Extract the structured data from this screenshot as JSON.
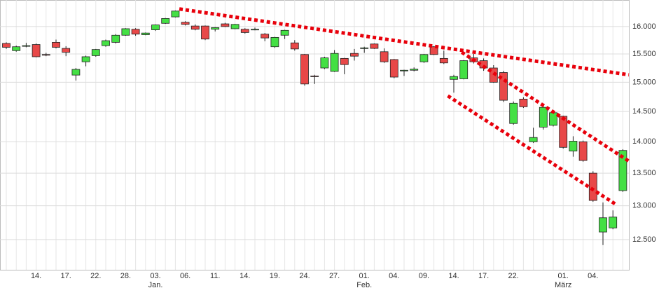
{
  "chart_data": {
    "type": "candlestick",
    "categories": [
      null,
      null,
      null,
      "14.",
      null,
      null,
      "17.",
      null,
      null,
      "22.",
      null,
      null,
      "28.",
      null,
      null,
      {
        "label": "03.",
        "month": "Jan."
      },
      null,
      null,
      "06.",
      null,
      null,
      "11.",
      null,
      null,
      "14.",
      null,
      null,
      "19.",
      null,
      null,
      "24.",
      null,
      null,
      "27.",
      null,
      null,
      {
        "label": "01.",
        "month": "Feb."
      },
      null,
      null,
      "04.",
      null,
      null,
      "09.",
      null,
      null,
      "14.",
      null,
      null,
      "17.",
      null,
      null,
      "22.",
      null,
      null,
      null,
      null,
      {
        "label": "01.",
        "month": "März"
      },
      null,
      null,
      "04.",
      null,
      null,
      null
    ],
    "open": [
      15690,
      15560,
      15640,
      15670,
      15490,
      15710,
      15600,
      15125,
      15360,
      15470,
      15650,
      15710,
      15840,
      15950,
      15850,
      15940,
      16060,
      16180,
      16080,
      16010,
      16010,
      15950,
      16050,
      15960,
      15950,
      15940,
      15860,
      15630,
      15840,
      15700,
      15490,
      15110,
      15250,
      15190,
      15420,
      15510,
      15600,
      15680,
      15540,
      15400,
      15200,
      15210,
      15360,
      15630,
      15420,
      15050,
      15060,
      15430,
      15380,
      15250,
      15170,
      14300,
      14710,
      14000,
      14240,
      14270,
      14420,
      13850,
      14000,
      13500,
      12610,
      12670,
      13230
    ],
    "high": [
      15710,
      15650,
      15700,
      15690,
      15520,
      15760,
      15640,
      15250,
      15470,
      15590,
      15760,
      15860,
      15970,
      15970,
      15890,
      16040,
      16160,
      16300,
      16100,
      16040,
      16020,
      15990,
      16070,
      16050,
      15970,
      15980,
      15880,
      15810,
      15940,
      15750,
      15500,
      15130,
      15450,
      15570,
      15430,
      15590,
      15630,
      15690,
      15600,
      15410,
      15220,
      15260,
      15500,
      15640,
      15560,
      15130,
      15390,
      15500,
      15420,
      15300,
      15200,
      14670,
      14740,
      14230,
      14590,
      14510,
      14430,
      14090,
      14020,
      13530,
      13050,
      12930,
      13880
    ],
    "low": [
      15590,
      15540,
      15620,
      15440,
      15460,
      15600,
      15460,
      15030,
      15280,
      15450,
      15630,
      15690,
      15830,
      15830,
      15840,
      15920,
      16050,
      16170,
      16020,
      15930,
      15750,
      15910,
      15990,
      15950,
      15870,
      15930,
      15730,
      15610,
      15770,
      15560,
      14940,
      14970,
      15230,
      15180,
      15140,
      15380,
      15520,
      15590,
      15340,
      15070,
      15110,
      15190,
      15340,
      15480,
      15320,
      14820,
      15050,
      15330,
      15200,
      14990,
      14660,
      14280,
      14560,
      13980,
      14200,
      14250,
      13890,
      13760,
      13680,
      13060,
      12420,
      12650,
      13210
    ],
    "close": [
      15620,
      15630,
      15650,
      15450,
      15480,
      15620,
      15530,
      15225,
      15450,
      15580,
      15740,
      15840,
      15960,
      15860,
      15880,
      16030,
      16150,
      16290,
      16040,
      15950,
      15770,
      15980,
      16000,
      16040,
      15890,
      15950,
      15790,
      15800,
      15930,
      15590,
      14970,
      15100,
      15430,
      15510,
      15310,
      15460,
      15610,
      15600,
      15360,
      15090,
      15210,
      15230,
      15490,
      15490,
      15340,
      15100,
      15380,
      15360,
      15250,
      15000,
      14690,
      14640,
      14580,
      14070,
      14570,
      14480,
      13910,
      14010,
      13700,
      13080,
      12820,
      12830,
      13860
    ],
    "up_color": "#44e044",
    "down_color": "#e84848",
    "trendlines": [
      {
        "color": "#e8000b",
        "x": [
          17.4,
          62.6
        ],
        "values": [
          16330,
          15130
        ]
      },
      {
        "color": "#e8000b",
        "x": [
          45.8,
          62.6
        ],
        "values": [
          15530,
          13690
        ]
      },
      {
        "color": "#e8000b",
        "x": [
          44.4,
          61.3
        ],
        "values": [
          14765,
          13020
        ]
      }
    ],
    "ylim": [
      12070,
      16500
    ],
    "log_scale": true,
    "grid": true,
    "yticks": [
      {
        "value": 12500,
        "label": "12.500"
      },
      {
        "value": 13000,
        "label": "13.000"
      },
      {
        "value": 13500,
        "label": "13.500"
      },
      {
        "value": 14000,
        "label": "14.000"
      },
      {
        "value": 14500,
        "label": "14.500"
      },
      {
        "value": 15000,
        "label": "15.000"
      },
      {
        "value": 15500,
        "label": "15.500"
      },
      {
        "value": 16000,
        "label": "16.000"
      }
    ]
  }
}
